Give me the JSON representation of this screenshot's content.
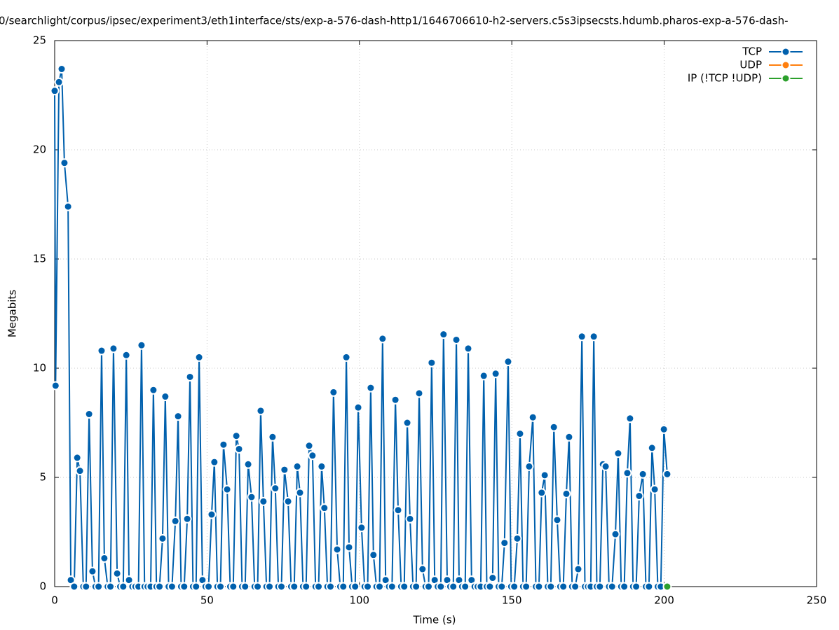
{
  "chart_data": {
    "type": "line",
    "title": "0/searchlight/corpus/ipsec/experiment3/eth1interface/sts/exp-a-576-dash-http1/1646706610-h2-servers.c5s3ipsecsts.hdumb.pharos-exp-a-576-dash-",
    "x_label": "Time (s)",
    "y_label": "Megabits",
    "xlim": [
      0,
      250
    ],
    "xticks": [
      0,
      50,
      100,
      150,
      200,
      250
    ],
    "ylim": [
      0,
      25
    ],
    "yticks": [
      0,
      5,
      10,
      15,
      20,
      25
    ],
    "grid": true,
    "legend": "top-right",
    "series": [
      {
        "name": "TCP",
        "color": "#0060ad",
        "x": [
          0,
          0.3,
          1.4,
          2.3,
          3.2,
          4.4,
          5.3,
          6.4,
          7.4,
          8.3,
          9.4,
          10.3,
          11.3,
          12.4,
          13.4,
          14.4,
          15.4,
          16.3,
          17.4,
          18.3,
          19.3,
          20.5,
          21.5,
          22.5,
          23.5,
          24.4,
          25.5,
          26.5,
          27.5,
          28.5,
          29.5,
          30.5,
          31.5,
          32.4,
          33.4,
          34.4,
          35.4,
          36.3,
          37.4,
          38.5,
          39.6,
          40.5,
          41.5,
          42.5,
          43.5,
          44.4,
          45.4,
          46.4,
          47.4,
          48.5,
          49.5,
          50.5,
          51.5,
          52.4,
          53.4,
          54.4,
          55.4,
          56.6,
          57.6,
          58.6,
          59.6,
          60.5,
          61.5,
          62.5,
          63.5,
          64.6,
          65.6,
          66.6,
          67.6,
          68.5,
          69.5,
          70.5,
          71.5,
          72.4,
          73.4,
          74.4,
          75.4,
          76.6,
          77.6,
          78.6,
          79.6,
          80.5,
          81.5,
          82.5,
          83.5,
          84.6,
          85.6,
          86.6,
          87.6,
          88.5,
          89.5,
          90.5,
          91.5,
          92.7,
          93.7,
          94.7,
          95.7,
          96.6,
          97.6,
          98.6,
          99.6,
          100.7,
          101.7,
          102.7,
          103.7,
          104.6,
          105.6,
          106.6,
          107.6,
          108.6,
          109.7,
          110.7,
          111.8,
          112.7,
          113.7,
          114.7,
          115.7,
          116.6,
          117.6,
          118.6,
          119.6,
          120.7,
          121.7,
          122.7,
          123.7,
          124.7,
          125.7,
          126.7,
          127.6,
          128.8,
          129.8,
          130.8,
          131.8,
          132.7,
          133.7,
          134.7,
          135.7,
          136.8,
          137.8,
          138.8,
          139.8,
          140.8,
          141.8,
          142.8,
          143.7,
          144.7,
          145.7,
          146.7,
          147.6,
          148.8,
          149.8,
          150.8,
          151.8,
          152.7,
          153.7,
          154.7,
          155.7,
          156.9,
          157.9,
          158.9,
          159.8,
          160.8,
          161.8,
          162.8,
          163.8,
          164.9,
          165.9,
          166.9,
          167.9,
          168.8,
          169.8,
          170.8,
          171.8,
          173.0,
          174.0,
          175.0,
          175.9,
          176.9,
          177.9,
          178.9,
          179.9,
          180.8,
          181.9,
          182.9,
          184.0,
          184.9,
          185.9,
          186.9,
          187.9,
          188.8,
          189.8,
          190.8,
          191.8,
          193.0,
          194.0,
          195.0,
          196.0,
          196.9,
          197.9,
          198.9,
          199.9,
          201.0
        ],
        "values": [
          22.7,
          9.2,
          23.1,
          23.7,
          19.4,
          17.4,
          0.3,
          0,
          5.9,
          5.3,
          0,
          0,
          7.9,
          0.7,
          0,
          0,
          10.8,
          1.3,
          0,
          0,
          10.9,
          0.6,
          0,
          0,
          10.6,
          0.3,
          0,
          0,
          0,
          11.05,
          0,
          0,
          0,
          9.0,
          0,
          0,
          2.2,
          8.7,
          0,
          0,
          3.0,
          7.8,
          0,
          0,
          3.1,
          9.6,
          0,
          0,
          10.5,
          0.3,
          0,
          0,
          3.3,
          5.7,
          0,
          0,
          6.5,
          4.45,
          0,
          0,
          6.9,
          6.3,
          0,
          0,
          5.6,
          4.1,
          0,
          0,
          8.05,
          3.9,
          0,
          0,
          6.85,
          4.5,
          0,
          0,
          5.35,
          3.9,
          0,
          0,
          5.5,
          4.3,
          0,
          0,
          6.45,
          6.0,
          0,
          0,
          5.5,
          3.6,
          0,
          0,
          8.9,
          1.7,
          0,
          0,
          10.5,
          1.8,
          0,
          0,
          8.2,
          2.7,
          0,
          0,
          9.1,
          1.45,
          0,
          0,
          11.35,
          0.3,
          0,
          0,
          8.55,
          3.5,
          0,
          0,
          7.5,
          3.1,
          0,
          0,
          8.85,
          0.8,
          0,
          0,
          10.25,
          0.3,
          0,
          0,
          11.55,
          0.3,
          0,
          0,
          11.3,
          0.3,
          0,
          0,
          10.9,
          0.3,
          0,
          0,
          0,
          9.65,
          0,
          0,
          0.4,
          9.75,
          0,
          0,
          2.0,
          10.3,
          0,
          0,
          2.2,
          7.0,
          0,
          0,
          5.5,
          7.75,
          0,
          0,
          4.3,
          5.1,
          0,
          0,
          7.3,
          3.05,
          0,
          0,
          4.25,
          6.85,
          0,
          0,
          0.8,
          11.45,
          0,
          0,
          0,
          11.45,
          0,
          0,
          5.6,
          5.5,
          0,
          0,
          2.4,
          6.1,
          0,
          0,
          5.2,
          7.7,
          0,
          0,
          4.15,
          5.15,
          0,
          0,
          6.35,
          4.45,
          0,
          0,
          7.2,
          5.15
        ]
      },
      {
        "name": "UDP",
        "color": "#ff7f0e",
        "x": [],
        "values": []
      },
      {
        "name": "IP (!TCP  !UDP)",
        "color": "#2ca02c",
        "x": [
          201
        ],
        "values": [
          0
        ]
      }
    ]
  }
}
